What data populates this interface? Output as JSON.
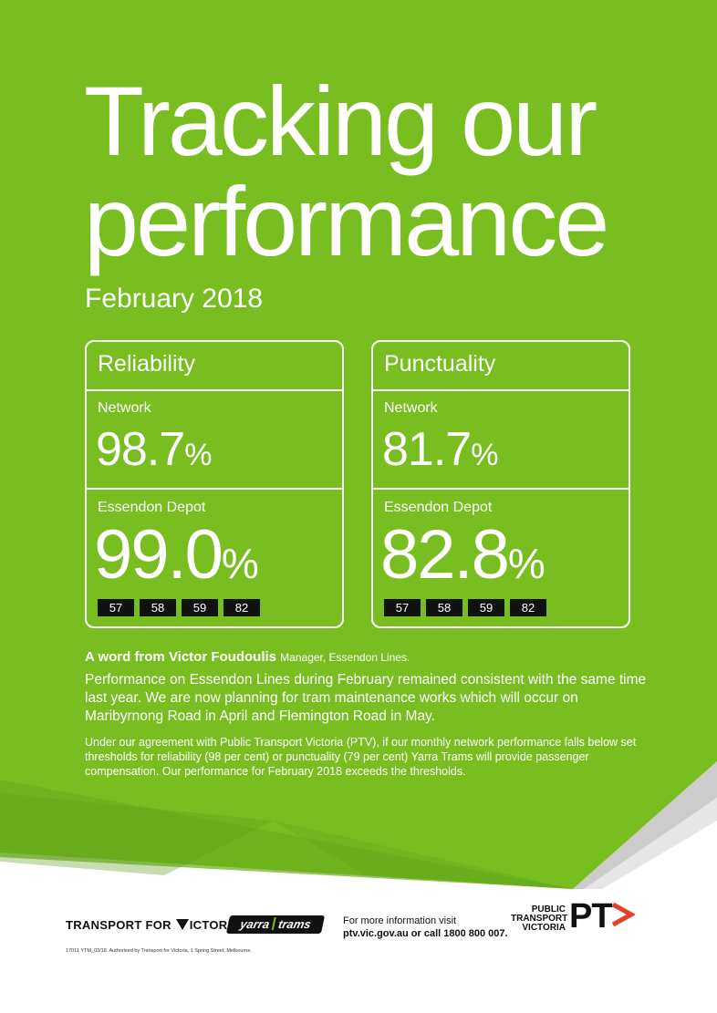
{
  "title": "Tracking our performance",
  "title_line1": "Tracking our",
  "title_line2": "performance",
  "month": "February 2018",
  "reliability": {
    "heading": "Reliability",
    "network_label": "Network",
    "network_value": "98.7",
    "depot_label": "Essendon Depot",
    "depot_value": "99.0",
    "percent": "%",
    "routes": [
      "57",
      "58",
      "59",
      "82"
    ]
  },
  "punctuality": {
    "heading": "Punctuality",
    "network_label": "Network",
    "network_value": "81.7",
    "depot_label": "Essendon Depot",
    "depot_value": "82.8",
    "percent": "%",
    "routes": [
      "57",
      "58",
      "59",
      "82"
    ]
  },
  "word": {
    "heading": "A word from Victor Foudoulis",
    "role": "Manager, Essendon Lines.",
    "body": "Performance on Essendon Lines during February remained consistent with the same time last year. We are now planning for tram maintenance works which will occur on Maribyrnong Road in April and Flemington Road in May.",
    "small": "Under our agreement with Public Transport Victoria (PTV), if our monthly network performance falls below set thresholds for reliability (98 per cent) or punctuality (79 per cent) Yarra Trams will provide passenger compensation. Our performance for February 2018 exceeds the thresholds."
  },
  "footer": {
    "tfv_part1": "TRANSPORT FOR",
    "tfv_part2": "ICTORIA",
    "yarra_1": "yarra",
    "yarra_2": "trams",
    "info_line1": "For more information visit",
    "info_line2": "ptv.vic.gov.au or call 1800 800 007.",
    "ptv_1": "PUBLIC",
    "ptv_2": "TRANSPORT",
    "ptv_3": "VICTORIA",
    "pt": "PT",
    "auth": "17011 YTM_03/18. Authorised by Transport for Victoria, 1 Spring Street, Melbourne."
  },
  "colors": {
    "green": "#78be20",
    "dark_green": "#5f9e1a",
    "ptv_orange": "#e8402b",
    "black": "#111111"
  }
}
